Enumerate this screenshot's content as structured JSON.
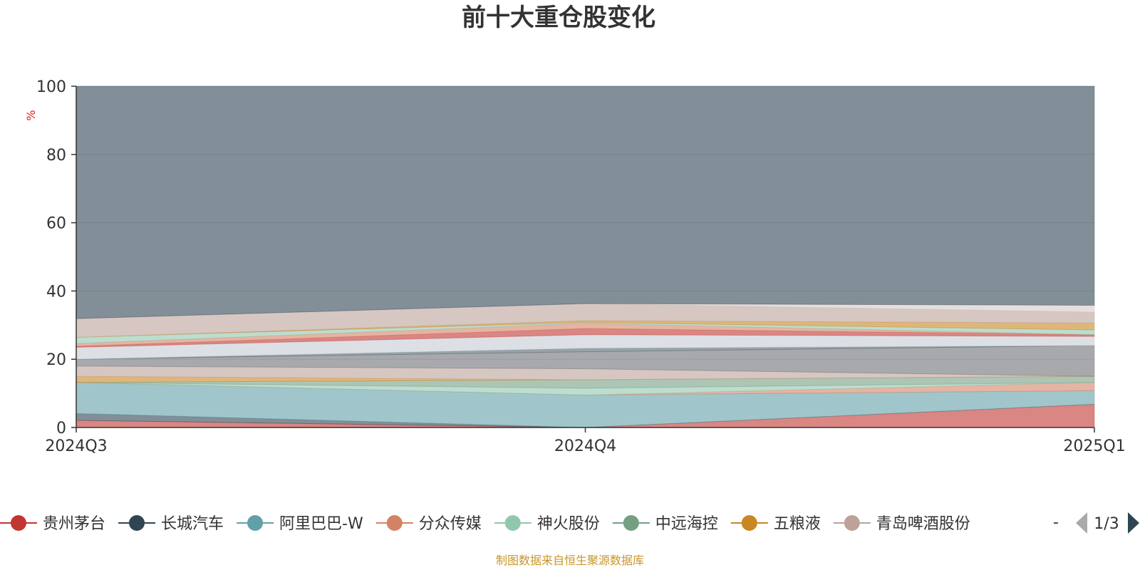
{
  "chart_data": {
    "type": "area",
    "stacked": true,
    "title": "前十大重仓股变化",
    "ylabel": "%",
    "ylim": [
      0,
      100
    ],
    "yticks": [
      0,
      20,
      40,
      60,
      80,
      100
    ],
    "categories": [
      "2024Q3",
      "2024Q4",
      "2025Q1"
    ],
    "grid": true,
    "legend_position": "bottom",
    "series": [
      {
        "name": "贵州茅台",
        "color": "#c23531",
        "values": [
          2.1,
          0.0,
          6.8
        ]
      },
      {
        "name": "长城汽车",
        "color": "#2f4554",
        "values": [
          2.0,
          0.0,
          0.0
        ]
      },
      {
        "name": "阿里巴巴-W",
        "color": "#61a0a8",
        "values": [
          9.1,
          9.5,
          4.0
        ]
      },
      {
        "name": "分众传媒",
        "color": "#d48265",
        "values": [
          0.0,
          0.0,
          2.4
        ]
      },
      {
        "name": "神火股份",
        "color": "#91c7ae",
        "values": [
          0.0,
          2.0,
          0.0
        ]
      },
      {
        "name": "中远海控",
        "color": "#749f83",
        "values": [
          0.0,
          2.5,
          1.8
        ]
      },
      {
        "name": "五粮液",
        "color": "#ca8622",
        "values": [
          1.8,
          0.0,
          0.0
        ]
      },
      {
        "name": "青岛啤酒股份",
        "color": "#bda29a",
        "values": [
          3.0,
          3.2,
          0.0
        ]
      },
      {
        "name": "",
        "color": "#6e7074",
        "values": [
          2.0,
          5.0,
          9.0
        ]
      },
      {
        "name": "",
        "color": "#546570",
        "values": [
          0.0,
          1.0,
          0.0
        ]
      },
      {
        "name": "",
        "color": "#c4ccd3",
        "values": [
          3.5,
          4.0,
          2.7
        ]
      },
      {
        "name": "",
        "color": "#c23531",
        "values": [
          0.3,
          1.8,
          0.5
        ]
      },
      {
        "name": "",
        "color": "#d48265",
        "values": [
          0.8,
          1.5,
          0.0
        ]
      },
      {
        "name": "",
        "color": "#91c7ae",
        "values": [
          1.8,
          0.3,
          1.4
        ]
      },
      {
        "name": "",
        "color": "#ca8622",
        "values": [
          0.0,
          0.5,
          2.0
        ]
      },
      {
        "name": "",
        "color": "#bda29a",
        "values": [
          5.5,
          5.0,
          3.2
        ]
      },
      {
        "name": "",
        "color": "#d7c9c4",
        "values": [
          0.0,
          0.0,
          2.0
        ]
      },
      {
        "name": "",
        "color": "#2f4554",
        "values": [
          68.1,
          63.7,
          64.2
        ]
      }
    ]
  },
  "legend": {
    "page": "1/3",
    "ellipsis": "-"
  },
  "source_note": "制图数据来自恒生聚源数据库"
}
